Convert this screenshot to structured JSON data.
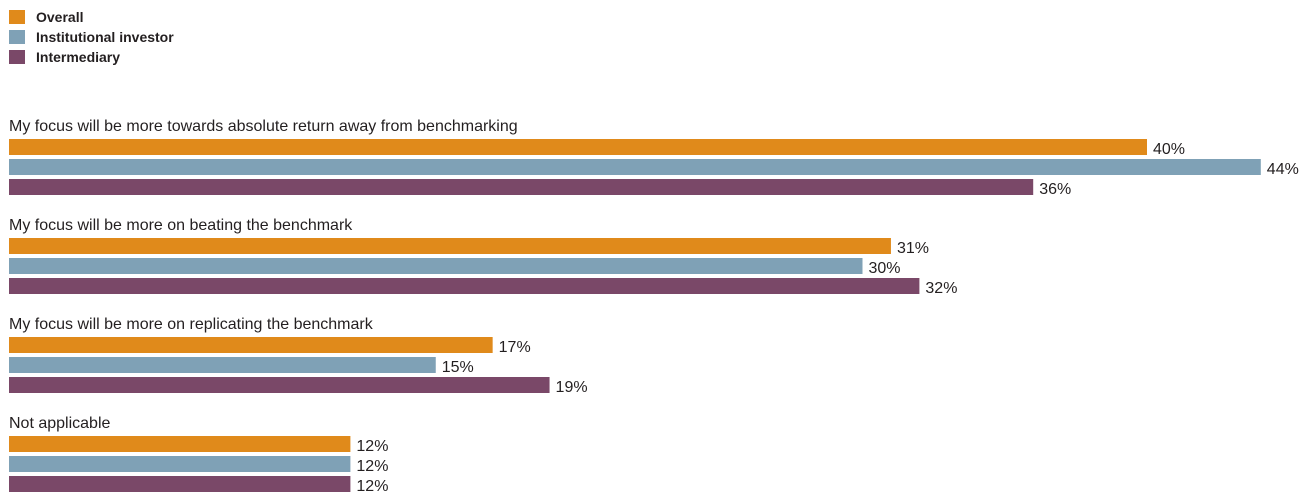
{
  "chart_data": {
    "type": "bar",
    "orientation": "horizontal",
    "categories": [
      "My focus will be more towards absolute return away from benchmarking",
      "My focus will be more on beating the benchmark",
      "My focus will be more on replicating  the benchmark",
      "Not applicable"
    ],
    "series": [
      {
        "name": "Overall",
        "color": "#e08a1b",
        "values": [
          40,
          31,
          17,
          12
        ],
        "labels": [
          "40%",
          "31%",
          "17%",
          "12%"
        ]
      },
      {
        "name": "Institutional investor",
        "color": "#7fa1b6",
        "values": [
          44,
          30,
          15,
          12
        ],
        "labels": [
          "44%",
          "30%",
          "15%",
          "12%"
        ]
      },
      {
        "name": "Intermediary",
        "color": "#7a4868",
        "values": [
          36,
          32,
          19,
          12
        ],
        "labels": [
          "36%",
          "32%",
          "19%",
          "12%"
        ]
      }
    ],
    "unit": "%",
    "legend_position": "top-left",
    "grid": false
  }
}
